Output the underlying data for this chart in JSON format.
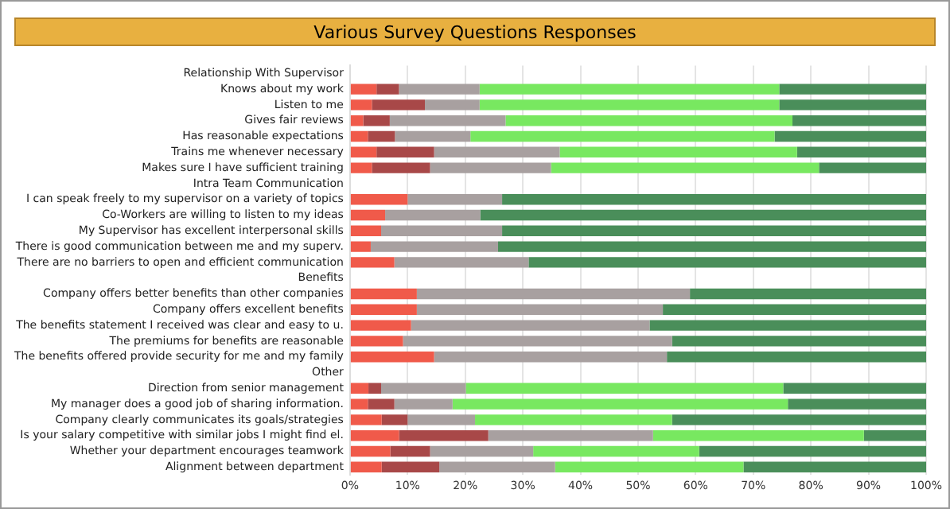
{
  "chart_data": {
    "type": "bar",
    "orientation": "horizontal",
    "stacked": true,
    "title": "Various Survey Questions Responses",
    "categories": [
      "Relationship With Supervisor",
      "Knows about my work",
      "Listen to me",
      "Gives fair reviews",
      "Has reasonable expectations",
      "Trains me whenever necessary",
      "Makes sure I have sufficient training",
      "Intra Team Communication",
      "I can speak freely to my supervisor on a variety of topics",
      "Co-Workers are willing to listen to my ideas",
      "My Supervisor has excellent interpersonal skills",
      "There is good communication between me and my superv.",
      "There are no barriers to open and efficient communication",
      "Benefits",
      "Company offers better benefits than other companies",
      "Company offers excellent benefits",
      "The benefits statement I received was clear and easy to u.",
      "The premiums for benefits are reasonable",
      "The benefits offered provide security for me and my family",
      "Other",
      "Direction from senior management",
      "My manager does a good job of sharing information.",
      "Company clearly communicates its goals/strategies",
      "Is your salary competitive with similar jobs I might find el.",
      "Whether your department encourages teamwork",
      "Alignment between department"
    ],
    "series": [
      {
        "color": "#f05a4a",
        "values": [
          null,
          4.6,
          3.8,
          2.3,
          3.1,
          4.6,
          3.8,
          null,
          10,
          6.1,
          5.4,
          3.6,
          7.7,
          null,
          11.6,
          11.6,
          10.6,
          9.2,
          14.6,
          null,
          3.2,
          3.1,
          5.5,
          8.5,
          7,
          5.5
        ]
      },
      {
        "color": "#a84848",
        "values": [
          null,
          3.9,
          9.2,
          4.6,
          4.7,
          10,
          10.1,
          null,
          0,
          0,
          0,
          0,
          0,
          null,
          0,
          0,
          0,
          0,
          0,
          null,
          2.2,
          4.6,
          4.5,
          15.5,
          6.9,
          10
        ]
      },
      {
        "color": "#a8a0a0",
        "values": [
          null,
          14,
          9.5,
          20.1,
          13.1,
          21.8,
          21,
          null,
          16.4,
          16.5,
          21,
          22.1,
          23.3,
          null,
          47.4,
          42.7,
          41.4,
          46.7,
          40.4,
          null,
          14.7,
          10.1,
          11.7,
          28.6,
          17.9,
          20.1
        ]
      },
      {
        "color": "#78e860",
        "values": [
          null,
          52,
          52,
          49.8,
          52.8,
          41.2,
          46.5,
          null,
          0,
          0,
          0,
          0,
          0,
          null,
          0,
          0,
          0,
          0,
          0,
          null,
          55.1,
          58.2,
          34.2,
          36.6,
          28.8,
          32.7
        ]
      },
      {
        "color": "#4a8e5a",
        "values": [
          null,
          25.5,
          25.5,
          23.2,
          26.3,
          22.4,
          18.6,
          null,
          73.6,
          77.4,
          73.6,
          74.3,
          69,
          null,
          41,
          45.7,
          48,
          44.1,
          45,
          null,
          24.8,
          24,
          44.1,
          10.8,
          39.4,
          31.7
        ]
      }
    ],
    "xlim": [
      0,
      100
    ],
    "xticks": [
      {
        "value": 0,
        "label": "0%"
      },
      {
        "value": 10,
        "label": "10%"
      },
      {
        "value": 20,
        "label": "20%"
      },
      {
        "value": 30,
        "label": "30%"
      },
      {
        "value": 40,
        "label": "40%"
      },
      {
        "value": 50,
        "label": "50%"
      },
      {
        "value": 60,
        "label": "60%"
      },
      {
        "value": 70,
        "label": "70%"
      },
      {
        "value": 80,
        "label": "80%"
      },
      {
        "value": 90,
        "label": "90%"
      },
      {
        "value": 100,
        "label": "100%"
      }
    ],
    "grid": "x",
    "legend": false
  }
}
